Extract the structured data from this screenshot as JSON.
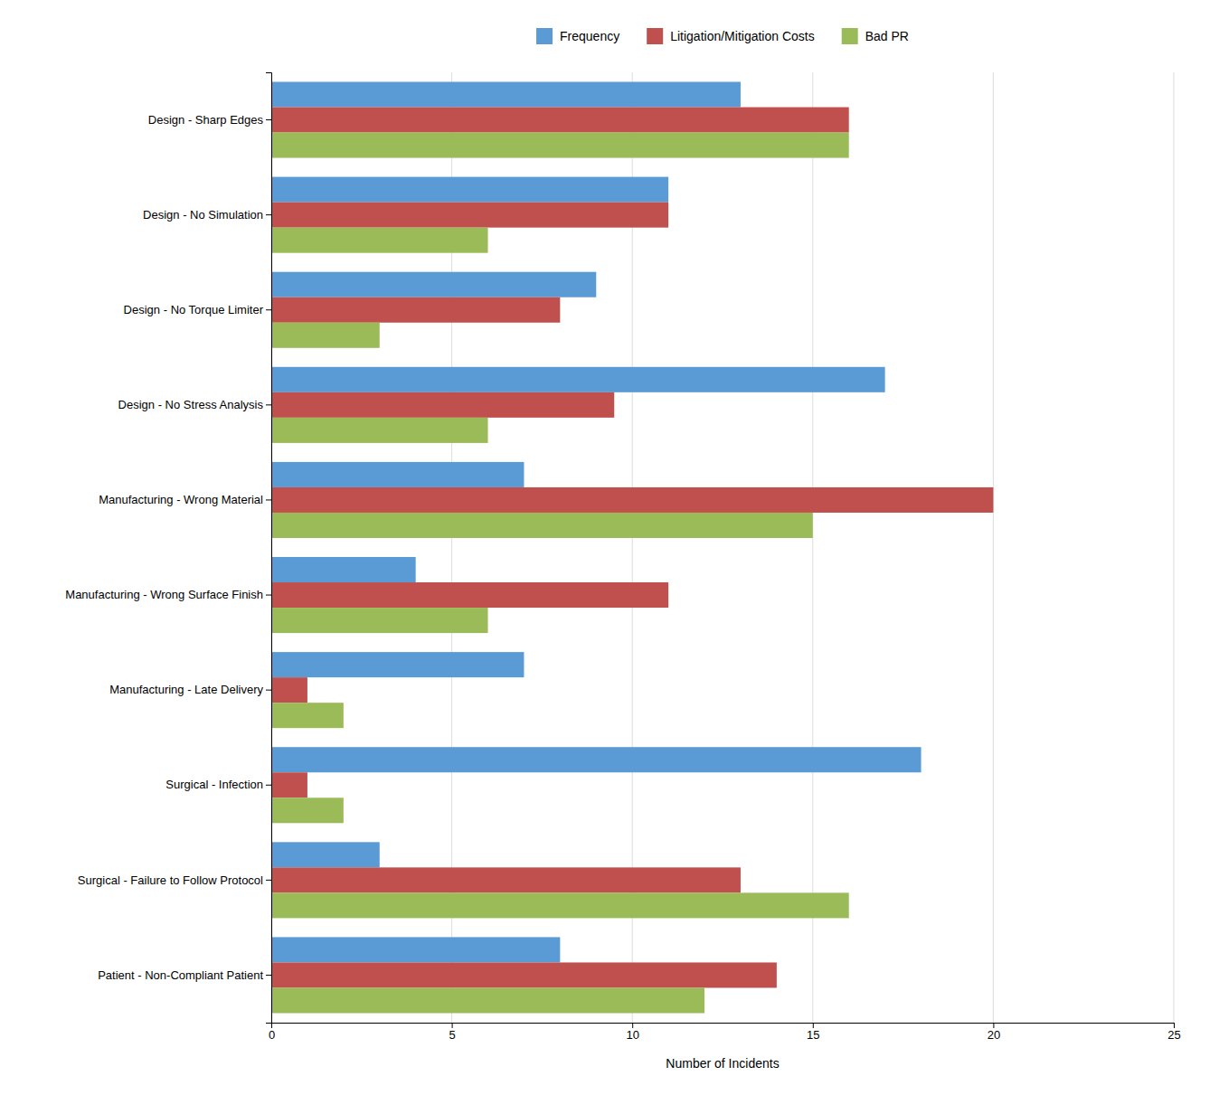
{
  "chart_data": {
    "type": "bar",
    "orientation": "horizontal",
    "categories": [
      "Design - Sharp Edges",
      "Design - No Simulation",
      "Design - No Torque Limiter",
      "Design - No Stress Analysis",
      "Manufacturing - Wrong Material",
      "Manufacturing - Wrong Surface Finish",
      "Manufacturing - Late Delivery",
      "Surgical - Infection",
      "Surgical - Failure to Follow Protocol",
      "Patient - Non-Compliant Patient"
    ],
    "series": [
      {
        "name": "Frequency",
        "color": "#5b9bd5",
        "values": [
          13,
          11,
          9,
          17,
          7,
          4,
          7,
          18,
          3,
          8
        ]
      },
      {
        "name": "Litigation/Mitigation Costs",
        "color": "#c0504d",
        "values": [
          16,
          11,
          8,
          9.5,
          20,
          11,
          1,
          1,
          13,
          14
        ]
      },
      {
        "name": "Bad PR",
        "color": "#9bbb59",
        "values": [
          16,
          6,
          3,
          6,
          15,
          6,
          2,
          2,
          16,
          12
        ]
      }
    ],
    "xlabel": "Number of Incidents",
    "xlim": [
      0,
      25
    ],
    "xticks": [
      0,
      5,
      10,
      15,
      20,
      25
    ],
    "grid": true,
    "legend": "top"
  }
}
